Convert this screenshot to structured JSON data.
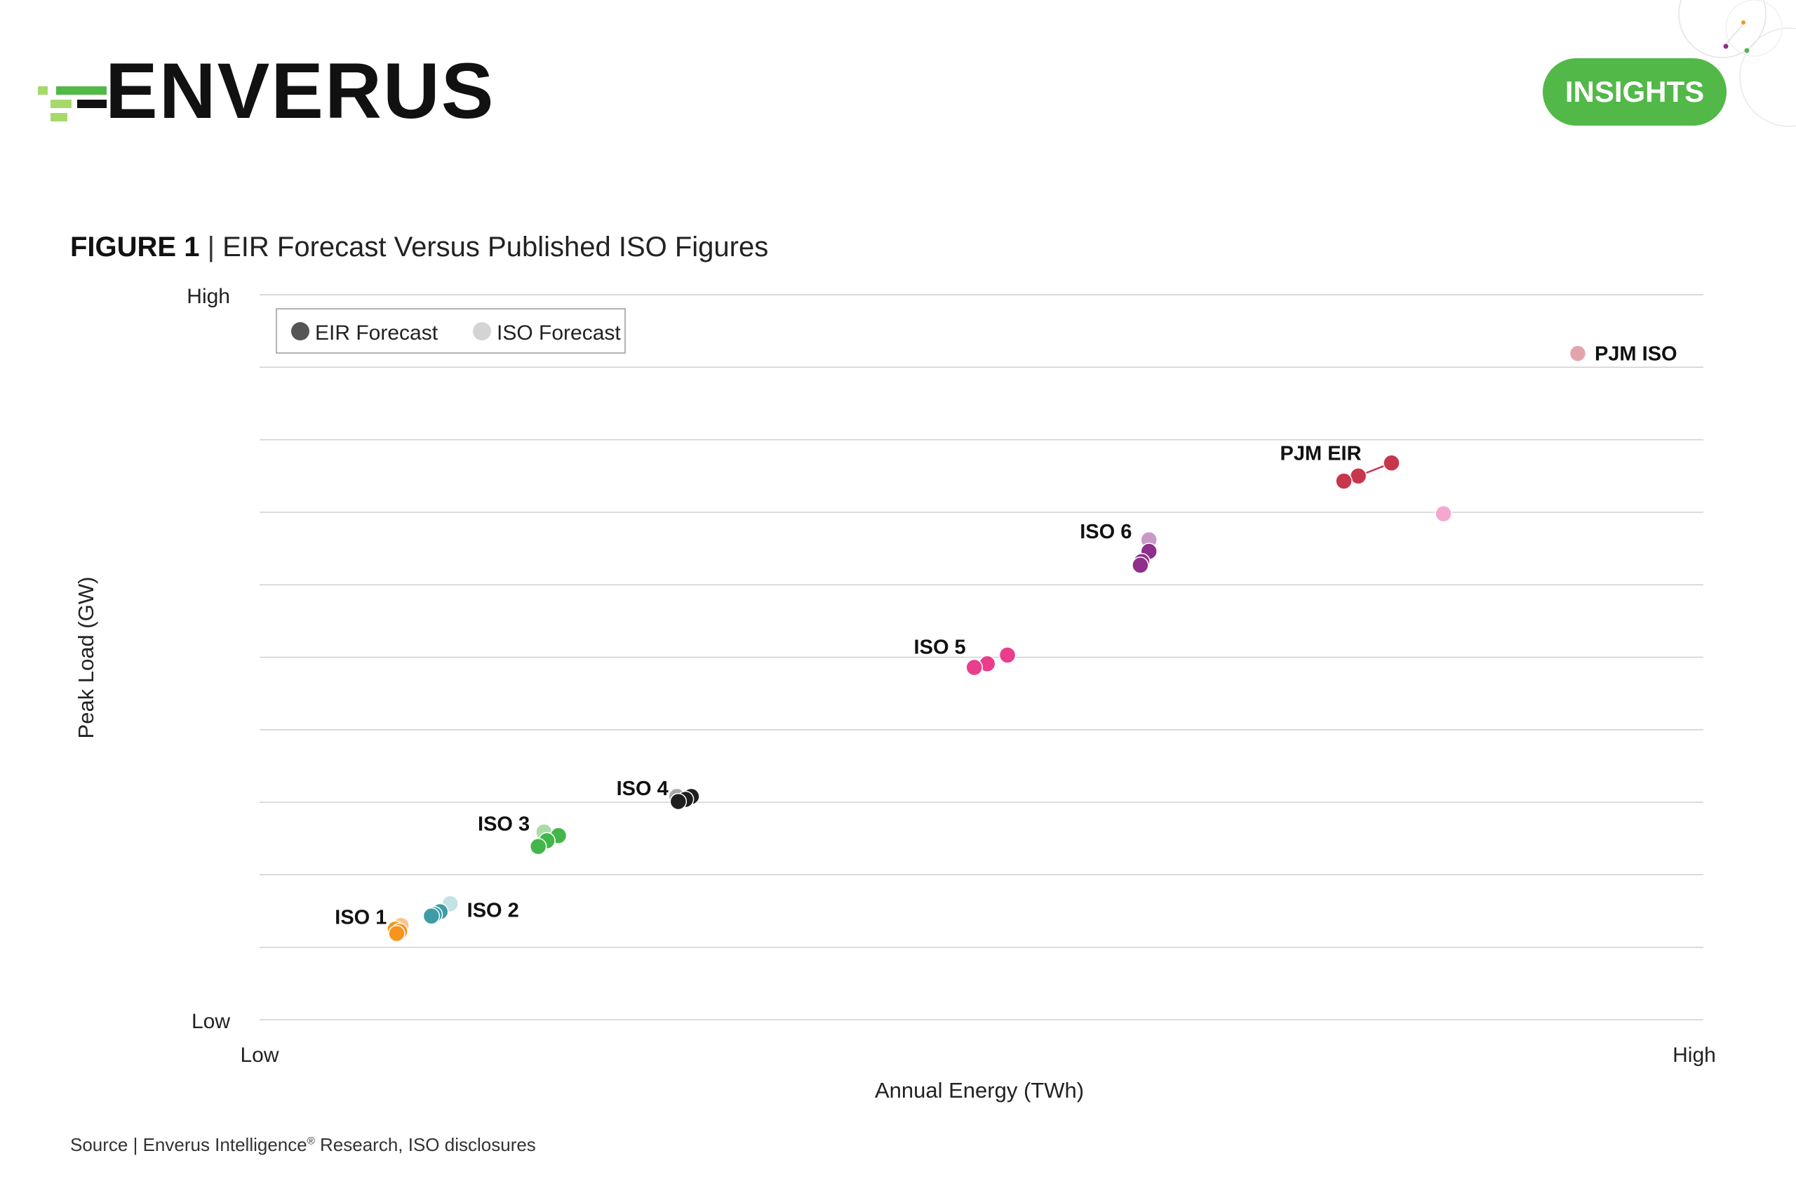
{
  "brand": {
    "logo_text": "ENVERUS",
    "badge_label": "INSIGHTS",
    "colors": {
      "green": "#52b848",
      "light_green": "#a6d96a",
      "text": "#111111"
    }
  },
  "figure": {
    "title_bold": "FIGURE 1",
    "title_separator": "|",
    "title_text": "EIR Forecast Versus Published ISO Figures"
  },
  "source": {
    "text_before": "Source | Enverus Intelligence",
    "sup": "®",
    "text_after": " Research, ISO disclosures"
  },
  "chart_data": {
    "type": "scatter",
    "title": "FIGURE 1 | EIR Forecast Versus Published ISO Figures",
    "xlabel": "Annual Energy (TWh)",
    "ylabel": "Peak Load (GW)",
    "x_ticks": [
      "Low",
      "High"
    ],
    "y_ticks": [
      "Low",
      "High"
    ],
    "xlim": [
      0,
      100
    ],
    "ylim": [
      0,
      100
    ],
    "grid": "horizontal",
    "legend": {
      "placement": "top-left",
      "entries": [
        {
          "label": "EIR Forecast",
          "color": "#555555"
        },
        {
          "label": "ISO Forecast",
          "color": "#d4d4d4"
        }
      ]
    },
    "series": [
      {
        "name": "ISO 1",
        "color": "#f7941d",
        "light_color": "#fbc48a",
        "label_side": "left",
        "points": [
          {
            "x": 9.8,
            "y": 13.0,
            "source": "ISO"
          },
          {
            "x": 9.4,
            "y": 12.5,
            "source": "EIR"
          },
          {
            "x": 9.7,
            "y": 12.2,
            "source": "EIR"
          },
          {
            "x": 9.5,
            "y": 11.9,
            "source": "EIR"
          }
        ]
      },
      {
        "name": "ISO 2",
        "color": "#3e9ca6",
        "light_color": "#c4e1e4",
        "label_side": "right",
        "points": [
          {
            "x": 13.2,
            "y": 16.0,
            "source": "ISO"
          },
          {
            "x": 12.5,
            "y": 14.9,
            "source": "EIR"
          },
          {
            "x": 12.1,
            "y": 14.5,
            "source": "EIR"
          },
          {
            "x": 11.9,
            "y": 14.3,
            "source": "EIR"
          }
        ]
      },
      {
        "name": "ISO 3",
        "color": "#43b649",
        "light_color": "#a8dba8",
        "label_side": "left",
        "points": [
          {
            "x": 19.7,
            "y": 25.9,
            "source": "ISO"
          },
          {
            "x": 20.7,
            "y": 25.4,
            "source": "EIR"
          },
          {
            "x": 19.9,
            "y": 24.7,
            "source": "EIR"
          },
          {
            "x": 19.3,
            "y": 23.9,
            "source": "EIR"
          }
        ]
      },
      {
        "name": "ISO 4",
        "color": "#1f1f1f",
        "light_color": "#a8a8a8",
        "label_side": "left",
        "points": [
          {
            "x": 28.9,
            "y": 30.8,
            "source": "ISO"
          },
          {
            "x": 29.9,
            "y": 30.8,
            "source": "EIR"
          },
          {
            "x": 29.5,
            "y": 30.4,
            "source": "EIR"
          },
          {
            "x": 29.0,
            "y": 30.1,
            "source": "EIR"
          }
        ]
      },
      {
        "name": "ISO 5",
        "color": "#ea3d8c",
        "light_color": "#f6a6c9",
        "label_side": "left",
        "points": [
          {
            "x": 51.8,
            "y": 50.3,
            "source": "EIR"
          },
          {
            "x": 50.4,
            "y": 49.1,
            "source": "EIR"
          },
          {
            "x": 49.5,
            "y": 48.6,
            "source": "EIR"
          }
        ]
      },
      {
        "name": "ISO 6",
        "color": "#8e2f8c",
        "light_color": "#c99ac7",
        "label_side": "left",
        "points": [
          {
            "x": 61.6,
            "y": 66.2,
            "source": "ISO"
          },
          {
            "x": 61.6,
            "y": 64.6,
            "source": "EIR"
          },
          {
            "x": 61.1,
            "y": 63.2,
            "source": "EIR"
          },
          {
            "x": 61.0,
            "y": 62.7,
            "source": "EIR"
          }
        ]
      },
      {
        "name": "PJM EIR",
        "color": "#c8364b",
        "light_color": "#e9a0aa",
        "label_side": "above-left",
        "connect": true,
        "points": [
          {
            "x": 78.4,
            "y": 76.8,
            "source": "EIR"
          },
          {
            "x": 76.1,
            "y": 75.0,
            "source": "EIR"
          },
          {
            "x": 75.1,
            "y": 74.3,
            "source": "EIR"
          }
        ]
      },
      {
        "name": "",
        "color": "#f4a8cf",
        "light_color": "#f4a8cf",
        "points": [
          {
            "x": 82.0,
            "y": 69.8,
            "source": "ISO"
          }
        ]
      },
      {
        "name": "PJM ISO",
        "color": "#e3a5ad",
        "light_color": "#e3a5ad",
        "label_side": "right",
        "points": [
          {
            "x": 91.3,
            "y": 91.9,
            "source": "ISO"
          }
        ]
      }
    ]
  }
}
